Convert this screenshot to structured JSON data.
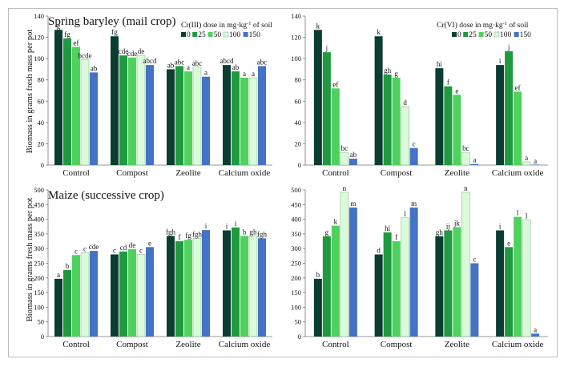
{
  "y_axis_label": "Biomass in grams fresh mass per pot",
  "row_titles": [
    "Spring baryley (mail crop)",
    "Maize (successive crop)"
  ],
  "legends": {
    "cr3": {
      "prefix": "Cr(III) dose in mg",
      "unit": "kg",
      "suffix": "of soil",
      "sep": "·",
      "exp": "-1"
    },
    "cr6": {
      "prefix": "Cr(VI) dose in mg",
      "unit": "kg",
      "suffix": "of soil",
      "sep": "·",
      "exp": "-1"
    }
  },
  "series_colors": [
    "#0b3d33",
    "#1f9a3f",
    "#4fd15e",
    "#d9fbd9",
    "#4472c4"
  ],
  "chart_data": [
    {
      "id": "barley_cr3",
      "type": "bar",
      "title": "Spring baryley (mail crop)",
      "ylabel": "Biomass in grams fresh mass per pot",
      "ylim": [
        0,
        140
      ],
      "yticks": [
        0,
        20,
        40,
        60,
        80,
        100,
        120,
        140
      ],
      "categories": [
        "Control",
        "Compost",
        "Zeolite",
        "Calcium oxide"
      ],
      "legend_title": "Cr(III) dose in mg·kg-1 of soil",
      "series": [
        {
          "name": "0",
          "values": [
            127,
            121,
            90,
            94
          ],
          "labels": [
            "g",
            "fg",
            "ab",
            "abcd"
          ]
        },
        {
          "name": "25",
          "values": [
            119,
            103,
            93,
            88
          ],
          "labels": [
            "fg",
            "cde",
            "abc",
            "ab"
          ]
        },
        {
          "name": "50",
          "values": [
            111,
            101,
            88,
            82
          ],
          "labels": [
            "ef",
            "cde",
            "a",
            "a"
          ]
        },
        {
          "name": "100",
          "values": [
            99,
            103,
            92,
            82
          ],
          "labels": [
            "bcde",
            "de",
            "abc",
            "a"
          ]
        },
        {
          "name": "150",
          "values": [
            87,
            94,
            83,
            93
          ],
          "labels": [
            "ab",
            "abcd",
            "a",
            "abc"
          ]
        }
      ]
    },
    {
      "id": "barley_cr6",
      "type": "bar",
      "title": "",
      "ylabel": "",
      "ylim": [
        0,
        140
      ],
      "yticks": [
        0,
        20,
        40,
        60,
        80,
        100,
        120,
        140
      ],
      "categories": [
        "Control",
        "Compost",
        "Zeolite",
        "Calcium oxide"
      ],
      "legend_title": "Cr(VI) dose in mg·kg-1 of soil",
      "series": [
        {
          "name": "0",
          "values": [
            127,
            121,
            91,
            94
          ],
          "labels": [
            "k",
            "k",
            "hi",
            "i"
          ]
        },
        {
          "name": "25",
          "values": [
            106,
            85,
            74,
            107
          ],
          "labels": [
            "j",
            "gh",
            "f",
            "j"
          ]
        },
        {
          "name": "50",
          "values": [
            72,
            82,
            66,
            69
          ],
          "labels": [
            "ef",
            "g",
            "e",
            "ef"
          ]
        },
        {
          "name": "100",
          "values": [
            12,
            55,
            12,
            3
          ],
          "labels": [
            "bc",
            "d",
            "bc",
            "a"
          ]
        },
        {
          "name": "150",
          "values": [
            6,
            16,
            1,
            0
          ],
          "labels": [
            "ab",
            "c",
            "a",
            "a"
          ]
        }
      ]
    },
    {
      "id": "maize_cr3",
      "type": "bar",
      "title": "Maize (successive crop)",
      "ylabel": "Biomass in grams fresh mass per pot",
      "ylim": [
        0,
        500
      ],
      "yticks": [
        0,
        50,
        100,
        150,
        200,
        250,
        300,
        350,
        400,
        450,
        500
      ],
      "categories": [
        "Control",
        "Compost",
        "Zeolite",
        "Calcium oxide"
      ],
      "series": [
        {
          "name": "0",
          "values": [
            197,
            280,
            343,
            362
          ],
          "labels": [
            "a",
            "c",
            "fgh",
            "i"
          ]
        },
        {
          "name": "25",
          "values": [
            227,
            290,
            325,
            372
          ],
          "labels": [
            "b",
            "cd",
            "f",
            "i"
          ]
        },
        {
          "name": "50",
          "values": [
            278,
            298,
            330,
            343
          ],
          "labels": [
            "c",
            "de",
            "fg",
            "h"
          ]
        },
        {
          "name": "100",
          "values": [
            285,
            280,
            335,
            343
          ],
          "labels": [
            "c",
            "c",
            "fgh",
            "gh"
          ]
        },
        {
          "name": "150",
          "values": [
            292,
            305,
            363,
            335
          ],
          "labels": [
            "cde",
            "e",
            "i",
            "fgh"
          ]
        }
      ]
    },
    {
      "id": "maize_cr6",
      "type": "bar",
      "title": "",
      "ylabel": "",
      "ylim": [
        0,
        500
      ],
      "yticks": [
        0,
        50,
        100,
        150,
        200,
        250,
        300,
        350,
        400,
        450,
        500
      ],
      "categories": [
        "Control",
        "Compost",
        "Zeolite",
        "Calcium oxide"
      ],
      "series": [
        {
          "name": "0",
          "values": [
            197,
            280,
            342,
            362
          ],
          "labels": [
            "b",
            "d",
            "gh",
            "i"
          ]
        },
        {
          "name": "25",
          "values": [
            342,
            355,
            362,
            305
          ],
          "labels": [
            "g",
            "hi",
            "ij",
            "e"
          ]
        },
        {
          "name": "50",
          "values": [
            378,
            325,
            373,
            408
          ],
          "labels": [
            "k",
            "f",
            "jk",
            "l"
          ]
        },
        {
          "name": "100",
          "values": [
            492,
            405,
            492,
            398
          ],
          "labels": [
            "n",
            "l",
            "n",
            "l"
          ]
        },
        {
          "name": "150",
          "values": [
            440,
            440,
            250,
            10
          ],
          "labels": [
            "m",
            "m",
            "c",
            "a"
          ]
        }
      ]
    }
  ]
}
